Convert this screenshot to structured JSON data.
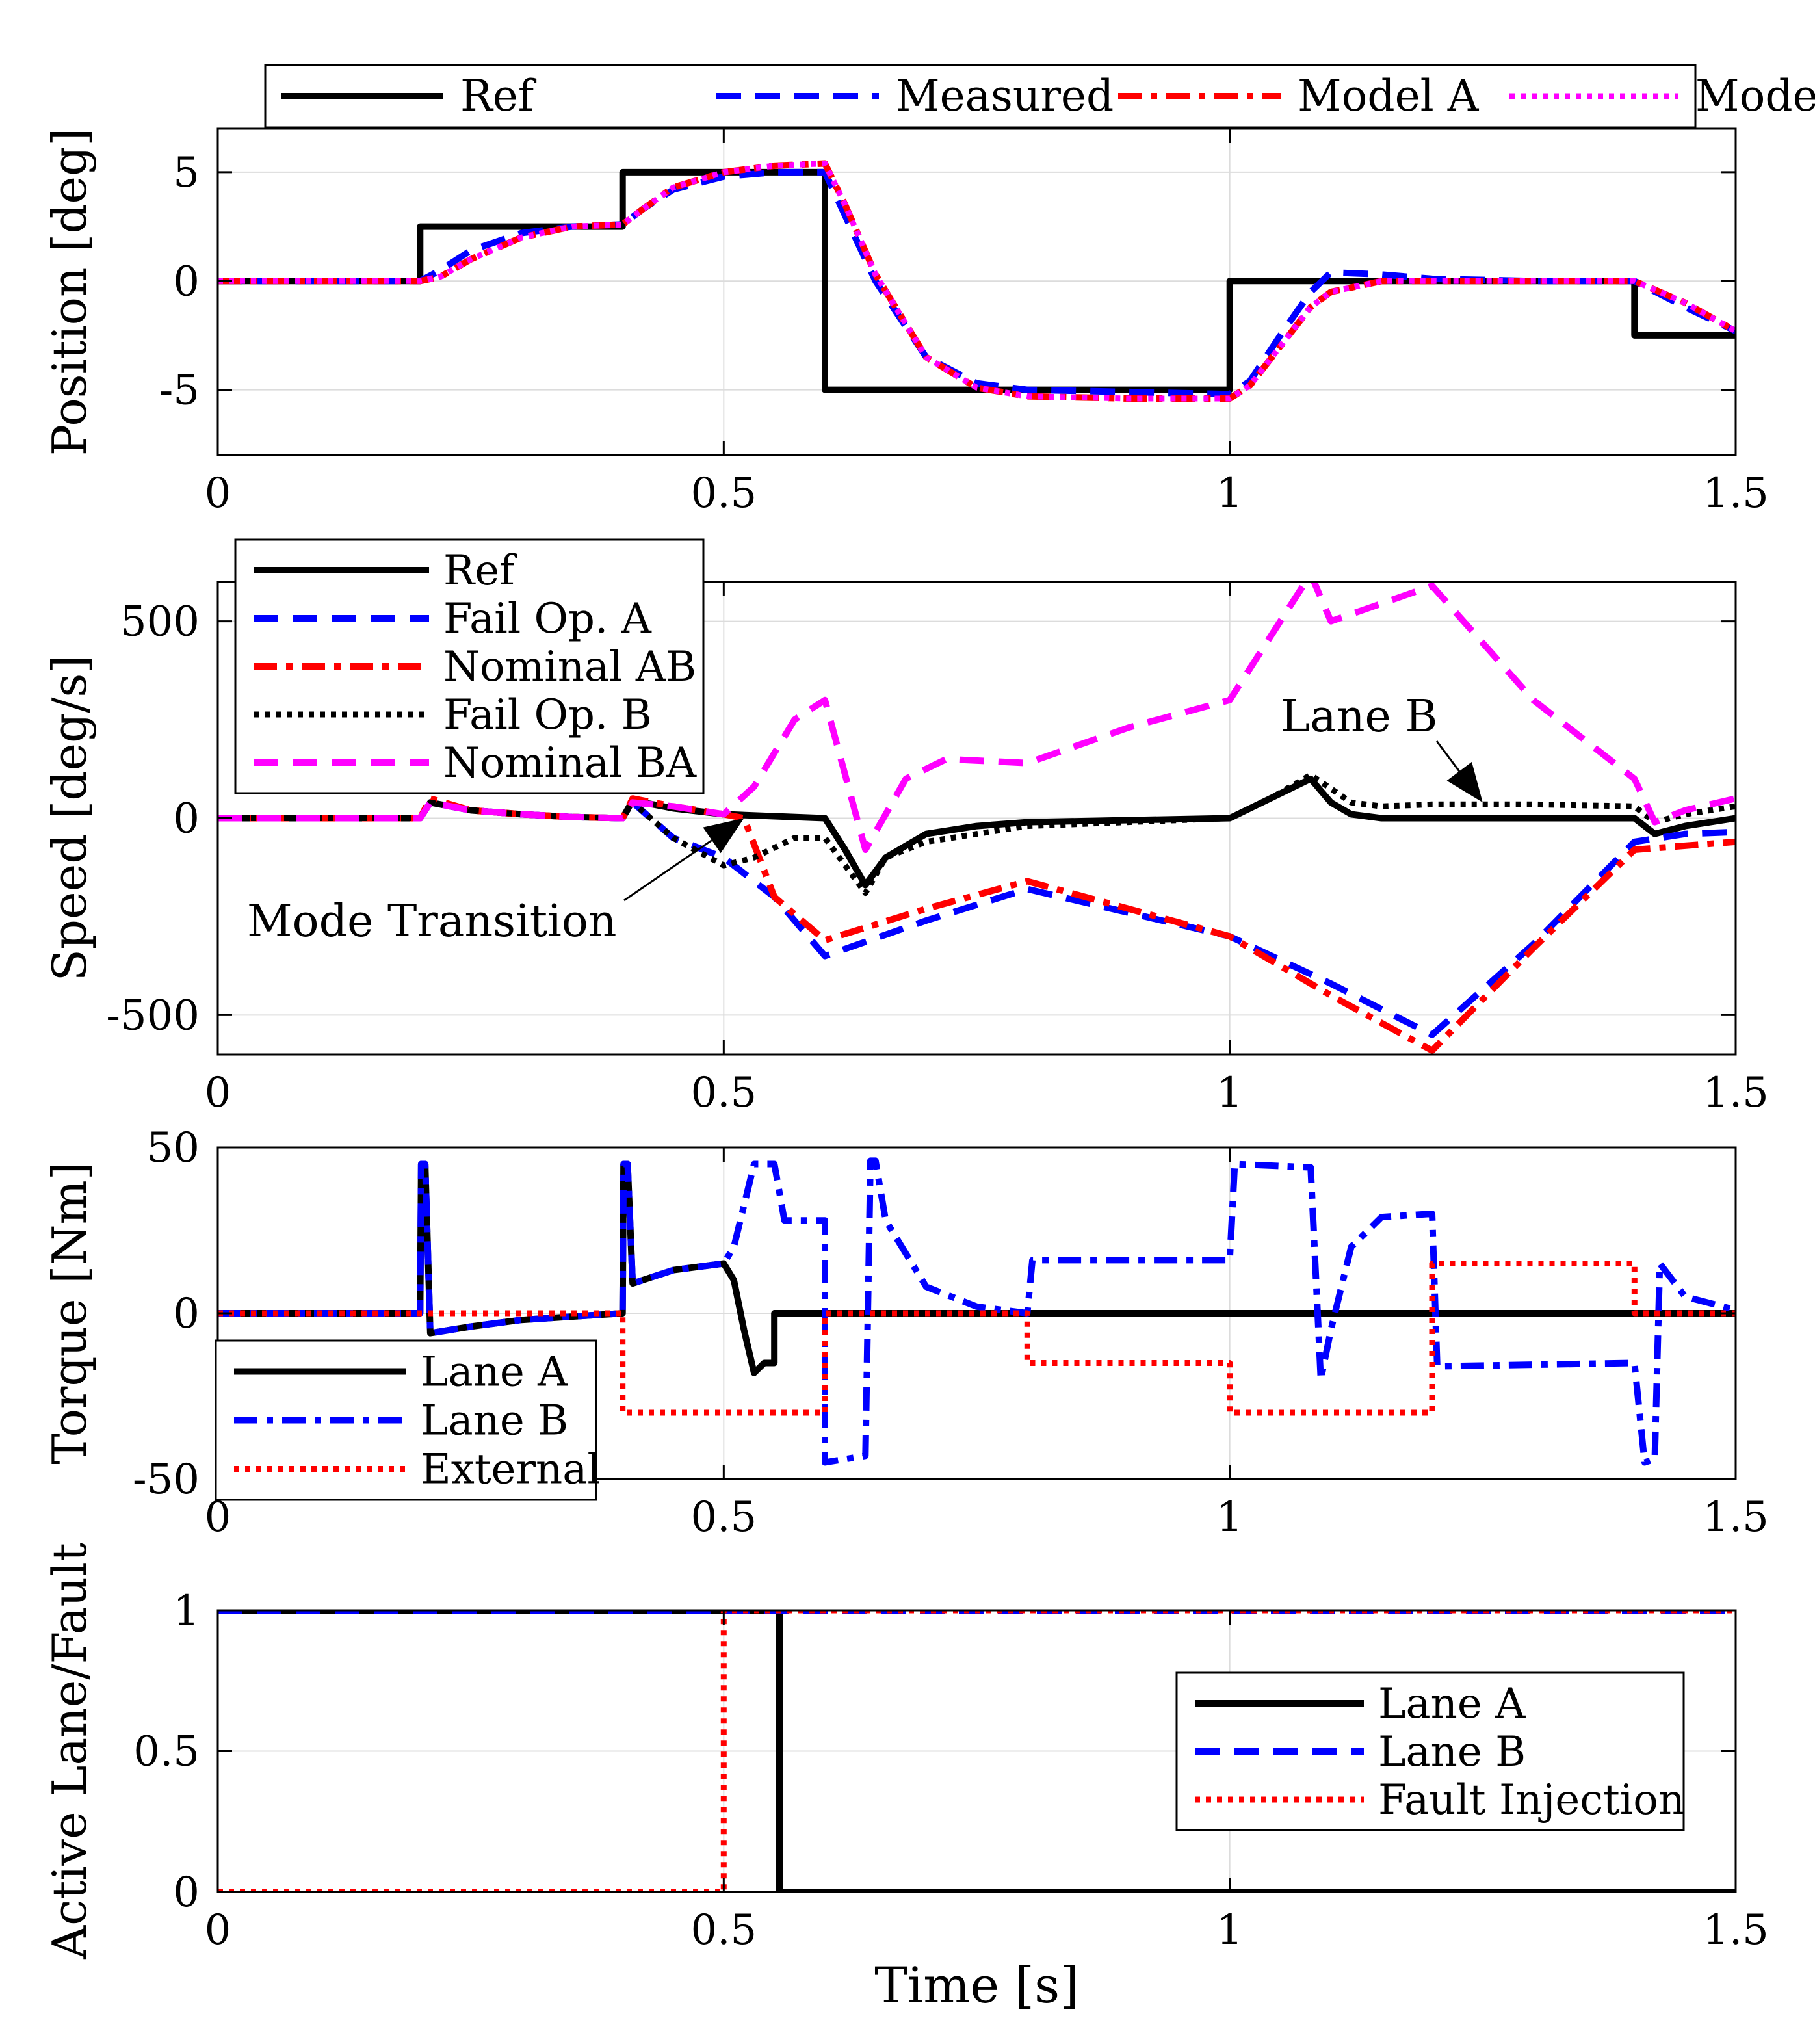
{
  "chart_data": [
    {
      "type": "line",
      "xlabel": "",
      "ylabel": "Position [deg]",
      "xlim": [
        0,
        1.5
      ],
      "ylim": [
        -8,
        7
      ],
      "xticks": [
        0,
        0.5,
        1,
        1.5
      ],
      "xtick_labels": [
        "0",
        "0.5",
        "1",
        "1.5"
      ],
      "yticks": [
        -5,
        0,
        5
      ],
      "ytick_labels": [
        "-5",
        "0",
        "5"
      ],
      "grid": true,
      "legend_placement": "top-outside-horizontal",
      "series": [
        {
          "name": "Ref",
          "color": "#000000",
          "style": "solid",
          "x": [
            0,
            0.2,
            0.2,
            0.4,
            0.4,
            0.6,
            0.6,
            1.0,
            1.0,
            1.4,
            1.4,
            1.5
          ],
          "y": [
            0,
            0,
            2.5,
            2.5,
            5,
            5,
            -5,
            -5,
            0,
            0,
            -2.5,
            -2.5
          ]
        },
        {
          "name": "Measured",
          "color": "#0000ff",
          "style": "dashed",
          "x": [
            0,
            0.2,
            0.22,
            0.25,
            0.3,
            0.35,
            0.4,
            0.42,
            0.45,
            0.5,
            0.55,
            0.6,
            0.62,
            0.65,
            0.7,
            0.75,
            0.8,
            0.9,
            1.0,
            1.02,
            1.05,
            1.08,
            1.1,
            1.15,
            1.2,
            1.3,
            1.4,
            1.45,
            1.5
          ],
          "y": [
            0,
            0,
            0.5,
            1.4,
            2.2,
            2.5,
            2.6,
            3.3,
            4.2,
            4.8,
            5.0,
            5.0,
            3.0,
            0.0,
            -3.5,
            -4.7,
            -5.0,
            -5.1,
            -5.2,
            -4.6,
            -2.5,
            -0.5,
            0.4,
            0.3,
            0.1,
            0.0,
            0.0,
            -1.2,
            -2.3
          ]
        },
        {
          "name": "Model A",
          "color": "#ff0000",
          "style": "dashdot",
          "x": [
            0,
            0.2,
            0.22,
            0.25,
            0.3,
            0.35,
            0.4,
            0.42,
            0.45,
            0.5,
            0.55,
            0.6,
            0.62,
            0.65,
            0.7,
            0.75,
            0.8,
            0.9,
            1.0,
            1.02,
            1.05,
            1.08,
            1.1,
            1.15,
            1.2,
            1.3,
            1.4,
            1.45,
            1.5
          ],
          "y": [
            0,
            0,
            0.2,
            1.0,
            2.0,
            2.5,
            2.6,
            3.3,
            4.3,
            5.0,
            5.3,
            5.4,
            3.5,
            0.3,
            -3.5,
            -4.9,
            -5.3,
            -5.4,
            -5.4,
            -4.8,
            -3.0,
            -1.2,
            -0.5,
            0.0,
            0.0,
            0.0,
            0.0,
            -1.0,
            -2.3
          ]
        },
        {
          "name": "Model B",
          "color": "#ff00ff",
          "style": "dotted",
          "x": [
            0,
            0.2,
            0.22,
            0.25,
            0.3,
            0.35,
            0.4,
            0.42,
            0.45,
            0.5,
            0.55,
            0.6,
            0.62,
            0.65,
            0.7,
            0.75,
            0.8,
            0.9,
            1.0,
            1.02,
            1.05,
            1.08,
            1.1,
            1.15,
            1.2,
            1.3,
            1.4,
            1.45,
            1.5
          ],
          "y": [
            0,
            0,
            0.2,
            1.0,
            2.0,
            2.5,
            2.6,
            3.3,
            4.3,
            5.0,
            5.3,
            5.4,
            3.5,
            0.3,
            -3.5,
            -4.9,
            -5.3,
            -5.4,
            -5.4,
            -4.8,
            -3.0,
            -1.2,
            -0.5,
            0.0,
            0.0,
            0.0,
            0.0,
            -1.0,
            -2.3
          ]
        }
      ]
    },
    {
      "type": "line",
      "xlabel": "",
      "ylabel": "Speed [deg/s]",
      "xlim": [
        0,
        1.5
      ],
      "ylim": [
        -600,
        600
      ],
      "xticks": [
        0,
        0.5,
        1,
        1.5
      ],
      "xtick_labels": [
        "0",
        "0.5",
        "1",
        "1.5"
      ],
      "yticks": [
        -500,
        0,
        500
      ],
      "ytick_labels": [
        "-500",
        "0",
        "500"
      ],
      "grid": true,
      "legend_placement": "top-left",
      "annotations": [
        {
          "text": "Mode Transition",
          "arrow_to": [
            0.52,
            0
          ]
        },
        {
          "text": "Lane B",
          "arrow_to": [
            1.25,
            40
          ]
        }
      ],
      "series": [
        {
          "name": "Ref",
          "color": "#000000",
          "style": "solid",
          "x": [
            0,
            0.2,
            0.21,
            0.25,
            0.3,
            0.35,
            0.4,
            0.41,
            0.45,
            0.5,
            0.55,
            0.6,
            0.62,
            0.64,
            0.66,
            0.7,
            0.75,
            0.8,
            0.9,
            1.0,
            1.04,
            1.08,
            1.1,
            1.12,
            1.15,
            1.2,
            1.3,
            1.4,
            1.42,
            1.45,
            1.5
          ],
          "y": [
            0,
            0,
            40,
            20,
            10,
            3,
            0,
            45,
            25,
            10,
            5,
            0,
            -80,
            -170,
            -100,
            -40,
            -20,
            -10,
            -5,
            0,
            50,
            100,
            40,
            10,
            0,
            0,
            0,
            0,
            -40,
            -20,
            0
          ]
        },
        {
          "name": "Fail Op. A",
          "color": "#0000ff",
          "style": "dashed",
          "x": [
            0,
            0.2,
            0.21,
            0.25,
            0.3,
            0.35,
            0.4,
            0.41,
            0.45,
            0.5,
            0.55,
            0.6,
            0.7,
            0.8,
            0.9,
            1.0,
            1.1,
            1.2,
            1.3,
            1.4,
            1.45,
            1.5
          ],
          "y": [
            0,
            0,
            40,
            20,
            10,
            3,
            0,
            40,
            -50,
            -100,
            -200,
            -350,
            -260,
            -180,
            -240,
            -300,
            -420,
            -550,
            -320,
            -60,
            -40,
            -35
          ]
        },
        {
          "name": "Nominal AB",
          "color": "#ff0000",
          "style": "dashdot",
          "x": [
            0,
            0.2,
            0.21,
            0.25,
            0.3,
            0.35,
            0.4,
            0.41,
            0.45,
            0.5,
            0.52,
            0.55,
            0.6,
            0.7,
            0.8,
            0.9,
            1.0,
            1.1,
            1.2,
            1.3,
            1.4,
            1.45,
            1.5
          ],
          "y": [
            0,
            0,
            50,
            20,
            10,
            3,
            0,
            50,
            30,
            10,
            0,
            -200,
            -310,
            -230,
            -160,
            -230,
            -300,
            -450,
            -590,
            -330,
            -80,
            -70,
            -60
          ]
        },
        {
          "name": "Fail Op. B",
          "color": "#000000",
          "style": "dotted",
          "x": [
            0,
            0.2,
            0.21,
            0.25,
            0.3,
            0.35,
            0.4,
            0.41,
            0.45,
            0.5,
            0.53,
            0.57,
            0.6,
            0.64,
            0.66,
            0.7,
            0.8,
            0.9,
            1.0,
            1.04,
            1.08,
            1.12,
            1.15,
            1.2,
            1.3,
            1.4,
            1.42,
            1.45,
            1.5
          ],
          "y": [
            0,
            0,
            40,
            20,
            10,
            3,
            0,
            40,
            -50,
            -120,
            -100,
            -50,
            -50,
            -190,
            -100,
            -60,
            -20,
            -10,
            0,
            50,
            110,
            40,
            30,
            35,
            35,
            30,
            -10,
            10,
            30
          ]
        },
        {
          "name": "Nominal BA",
          "color": "#ff00ff",
          "style": "dashed",
          "x": [
            0,
            0.2,
            0.21,
            0.25,
            0.3,
            0.35,
            0.4,
            0.41,
            0.45,
            0.5,
            0.53,
            0.57,
            0.6,
            0.64,
            0.68,
            0.72,
            0.8,
            0.9,
            1.0,
            1.08,
            1.1,
            1.2,
            1.3,
            1.4,
            1.42,
            1.45,
            1.5
          ],
          "y": [
            0,
            0,
            40,
            20,
            10,
            3,
            0,
            40,
            30,
            10,
            80,
            250,
            300,
            -80,
            100,
            150,
            140,
            230,
            300,
            620,
            500,
            590,
            300,
            100,
            -10,
            20,
            50
          ]
        }
      ]
    },
    {
      "type": "line",
      "xlabel": "",
      "ylabel": "Torque [Nm]",
      "xlim": [
        0,
        1.5
      ],
      "ylim": [
        -50,
        50
      ],
      "xticks": [
        0,
        0.5,
        1,
        1.5
      ],
      "xtick_labels": [
        "0",
        "0.5",
        "1",
        "1.5"
      ],
      "yticks": [
        -50,
        0,
        50
      ],
      "ytick_labels": [
        "-50",
        "0",
        "50"
      ],
      "grid": true,
      "legend_placement": "bottom-left",
      "series": [
        {
          "name": "Lane A",
          "color": "#000000",
          "style": "solid",
          "x": [
            0,
            0.2,
            0.201,
            0.205,
            0.21,
            0.25,
            0.3,
            0.35,
            0.4,
            0.401,
            0.405,
            0.41,
            0.45,
            0.5,
            0.51,
            0.52,
            0.53,
            0.54,
            0.55,
            0.55,
            0.555,
            0.555,
            1.5
          ],
          "y": [
            0,
            0,
            45,
            45,
            -6,
            -4,
            -2,
            -1,
            0,
            45,
            45,
            9,
            13,
            15,
            10,
            -5,
            -18,
            -15,
            -15,
            0,
            0,
            0,
            0
          ]
        },
        {
          "name": "Lane B",
          "color": "#0000ff",
          "style": "dashdot",
          "x": [
            0,
            0.2,
            0.201,
            0.205,
            0.21,
            0.25,
            0.3,
            0.35,
            0.4,
            0.401,
            0.405,
            0.41,
            0.45,
            0.5,
            0.51,
            0.53,
            0.55,
            0.56,
            0.6,
            0.6,
            0.64,
            0.645,
            0.65,
            0.66,
            0.7,
            0.75,
            0.8,
            0.805,
            1.0,
            1.005,
            1.08,
            1.09,
            1.1,
            1.12,
            1.15,
            1.2,
            1.205,
            1.4,
            1.41,
            1.42,
            1.425,
            1.45,
            1.5
          ],
          "y": [
            0,
            0,
            45,
            45,
            -6,
            -4,
            -2,
            -1,
            0,
            45,
            45,
            9,
            13,
            15,
            20,
            45,
            45,
            28,
            28,
            -45,
            -43,
            46,
            46,
            28,
            8,
            2,
            0,
            16,
            16,
            45,
            44,
            -20,
            -5,
            20,
            29,
            30,
            -16,
            -15,
            -45,
            -44,
            15,
            5,
            1
          ]
        },
        {
          "name": "External",
          "color": "#ff0000",
          "style": "dotted",
          "x": [
            0,
            0.4,
            0.4,
            0.6,
            0.6,
            0.8,
            0.8,
            1.0,
            1.0,
            1.2,
            1.2,
            1.4,
            1.4,
            1.5
          ],
          "y": [
            0,
            0,
            -30,
            -30,
            0,
            0,
            -15,
            -15,
            -30,
            -30,
            15,
            15,
            0,
            0
          ]
        }
      ]
    },
    {
      "type": "line",
      "xlabel": "Time [s]",
      "ylabel": "Active Lane/Fault",
      "xlim": [
        0,
        1.5
      ],
      "ylim": [
        0,
        1
      ],
      "xticks": [
        0,
        0.5,
        1,
        1.5
      ],
      "xtick_labels": [
        "0",
        "0.5",
        "1",
        "1.5"
      ],
      "yticks": [
        0,
        0.5,
        1
      ],
      "ytick_labels": [
        "0",
        "0.5",
        "1"
      ],
      "grid": true,
      "legend_placement": "right",
      "series": [
        {
          "name": "Lane A",
          "color": "#000000",
          "style": "solid",
          "x": [
            0,
            0.555,
            0.555,
            1.5
          ],
          "y": [
            1,
            1,
            0,
            0
          ]
        },
        {
          "name": "Lane B",
          "color": "#0000ff",
          "style": "dashed",
          "x": [
            0,
            1.5
          ],
          "y": [
            1,
            1
          ]
        },
        {
          "name": "Fault Injection",
          "color": "#ff0000",
          "style": "dotted",
          "x": [
            0,
            0.5,
            0.5,
            1.5
          ],
          "y": [
            0,
            0,
            1,
            1
          ]
        }
      ]
    }
  ]
}
